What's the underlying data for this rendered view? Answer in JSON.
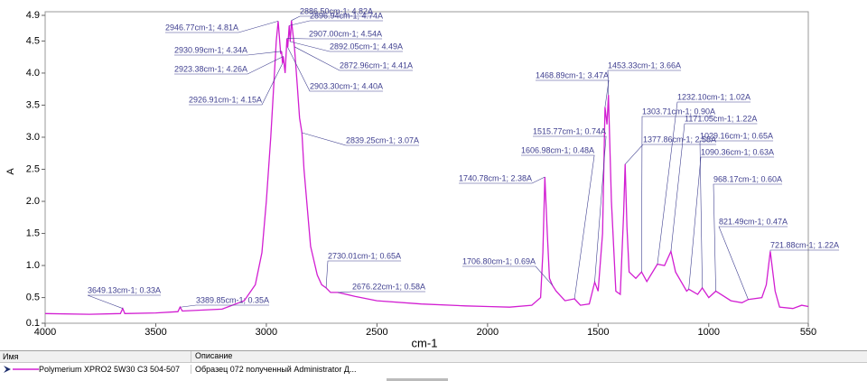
{
  "chart_data": {
    "type": "line",
    "xlabel": "cm-1",
    "ylabel": "A",
    "xlim": [
      4000,
      550
    ],
    "ylim": [
      0.1,
      4.9
    ],
    "xticks": [
      4000,
      3500,
      3000,
      2500,
      2000,
      1500,
      1000,
      550
    ],
    "yticks": [
      0.1,
      0.5,
      {
        "value": 1,
        "label": "1.0"
      },
      1.5,
      {
        "value": 2,
        "label": "2.0"
      },
      2.5,
      {
        "value": 3,
        "label": "3.0"
      },
      3.5,
      {
        "value": 4,
        "label": "4.0"
      },
      4.5,
      4.9
    ],
    "series": [
      {
        "name": "Polymerium XPRO2 5W30 C3 504-507",
        "color": "#d21ed2",
        "x": [
          4000,
          3800,
          3660,
          3649.13,
          3640,
          3500,
          3400,
          3389.85,
          3380,
          3200,
          3100,
          3050,
          3020,
          3000,
          2980,
          2965,
          2955,
          2946.77,
          2935,
          2930.99,
          2926.91,
          2923.38,
          2915,
          2907,
          2903.3,
          2896.94,
          2892.05,
          2886.5,
          2872.96,
          2860,
          2850,
          2839.25,
          2830,
          2800,
          2770,
          2750,
          2730.01,
          2710,
          2676.22,
          2600,
          2500,
          2300,
          2100,
          2000,
          1900,
          1800,
          1760,
          1750,
          1740.78,
          1730,
          1720,
          1706.8,
          1690,
          1650,
          1606.98,
          1580,
          1540,
          1515.77,
          1500,
          1480,
          1468.89,
          1460,
          1453.33,
          1440,
          1420,
          1400,
          1385,
          1377.86,
          1370,
          1360,
          1330,
          1303.71,
          1280,
          1232.1,
          1200,
          1171.05,
          1150,
          1100,
          1090.36,
          1050,
          1029.16,
          1000,
          968.17,
          900,
          850,
          821.49,
          760,
          740,
          721.88,
          700,
          680,
          620,
          580,
          550
        ],
        "values": [
          0.25,
          0.24,
          0.25,
          0.33,
          0.25,
          0.26,
          0.28,
          0.35,
          0.29,
          0.32,
          0.45,
          0.7,
          1.2,
          2.0,
          3.0,
          3.9,
          4.5,
          4.81,
          4.3,
          4.34,
          4.15,
          4.26,
          4.0,
          4.54,
          4.4,
          4.74,
          4.49,
          4.82,
          4.41,
          3.8,
          3.3,
          3.07,
          2.5,
          1.3,
          0.85,
          0.7,
          0.65,
          0.58,
          0.58,
          0.52,
          0.45,
          0.4,
          0.37,
          0.36,
          0.35,
          0.38,
          0.5,
          1.2,
          2.38,
          1.5,
          0.8,
          0.69,
          0.6,
          0.45,
          0.48,
          0.38,
          0.4,
          0.74,
          0.6,
          1.5,
          3.47,
          3.2,
          3.66,
          2.0,
          0.6,
          0.55,
          1.8,
          2.58,
          1.6,
          0.9,
          0.8,
          0.9,
          0.75,
          1.02,
          1.0,
          1.22,
          0.9,
          0.6,
          0.63,
          0.55,
          0.65,
          0.5,
          0.6,
          0.45,
          0.42,
          0.47,
          0.5,
          0.7,
          1.22,
          0.6,
          0.35,
          0.33,
          0.38,
          0.36
        ]
      }
    ],
    "annotations": [
      {
        "x": 2946.77,
        "y": 4.81,
        "label": "2946.77cm-1; 4.81A"
      },
      {
        "x": 2886.5,
        "y": 4.82,
        "label": "2886.50cm-1; 4.82A"
      },
      {
        "x": 2896.94,
        "y": 4.74,
        "label": "2896.94cm-1; 4.74A"
      },
      {
        "x": 2907,
        "y": 4.54,
        "label": "2907.00cm-1; 4.54A"
      },
      {
        "x": 2930.99,
        "y": 4.34,
        "label": "2930.99cm-1; 4.34A"
      },
      {
        "x": 2892.05,
        "y": 4.49,
        "label": "2892.05cm-1; 4.49A"
      },
      {
        "x": 2923.38,
        "y": 4.26,
        "label": "2923.38cm-1; 4.26A"
      },
      {
        "x": 2872.96,
        "y": 4.41,
        "label": "2872.96cm-1; 4.41A"
      },
      {
        "x": 2903.3,
        "y": 4.4,
        "label": "2903.30cm-1; 4.40A"
      },
      {
        "x": 2926.91,
        "y": 4.15,
        "label": "2926.91cm-1; 4.15A"
      },
      {
        "x": 2839.25,
        "y": 3.07,
        "label": "2839.25cm-1; 3.07A"
      },
      {
        "x": 2730.01,
        "y": 0.65,
        "label": "2730.01cm-1; 0.65A"
      },
      {
        "x": 2676.22,
        "y": 0.58,
        "label": "2676.22cm-1; 0.58A"
      },
      {
        "x": 3649.13,
        "y": 0.33,
        "label": "3649.13cm-1; 0.33A"
      },
      {
        "x": 3389.85,
        "y": 0.35,
        "label": "3389.85cm-1; 0.35A"
      },
      {
        "x": 1468.89,
        "y": 3.47,
        "label": "1468.89cm-1; 3.47A"
      },
      {
        "x": 1453.33,
        "y": 3.66,
        "label": "1453.33cm-1; 3.66A"
      },
      {
        "x": 1515.77,
        "y": 0.74,
        "label": "1515.77cm-1; 0.74A"
      },
      {
        "x": 1606.98,
        "y": 0.48,
        "label": "1606.98cm-1; 0.48A"
      },
      {
        "x": 1740.78,
        "y": 2.38,
        "label": "1740.78cm-1; 2.38A"
      },
      {
        "x": 1706.8,
        "y": 0.69,
        "label": "1706.80cm-1; 0.69A"
      },
      {
        "x": 1377.86,
        "y": 2.58,
        "label": "1377.86cm-1; 2.58A"
      },
      {
        "x": 1303.71,
        "y": 0.9,
        "label": "1303.71cm-1; 0.90A"
      },
      {
        "x": 1232.1,
        "y": 1.02,
        "label": "1232.10cm-1; 1.02A"
      },
      {
        "x": 1171.05,
        "y": 1.22,
        "label": "1171.05cm-1; 1.22A"
      },
      {
        "x": 1029.16,
        "y": 0.65,
        "label": "1029.16cm-1; 0.65A"
      },
      {
        "x": 1090.36,
        "y": 0.63,
        "label": "1090.36cm-1; 0.63A"
      },
      {
        "x": 968.17,
        "y": 0.6,
        "label": "968.17cm-1; 0.60A"
      },
      {
        "x": 821.49,
        "y": 0.47,
        "label": "821.49cm-1; 0.47A"
      },
      {
        "x": 721.88,
        "y": 1.22,
        "label": "721.88cm-1; 1.22A"
      }
    ]
  },
  "table": {
    "headers": [
      "Имя",
      "Описание"
    ],
    "description": "Образец 072 полученный Administrator Д..."
  }
}
